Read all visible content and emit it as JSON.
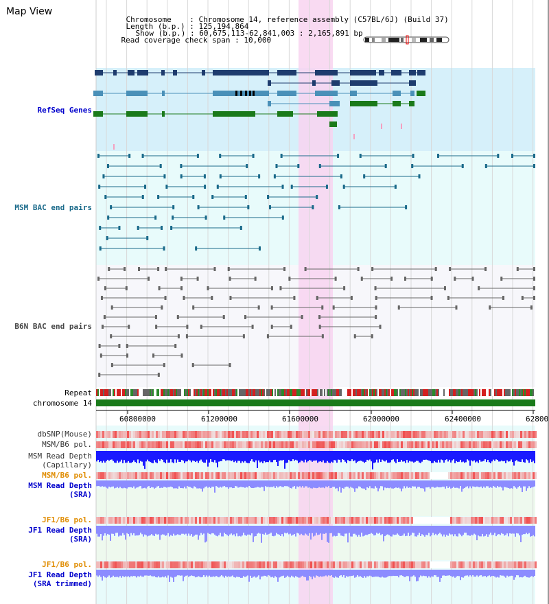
{
  "view_title": "Map View",
  "header": {
    "chromosome_label": "Chromosome",
    "chromosome_value": "Chromosome 14, reference assembly (C57BL/6J) (Build 37)",
    "length_label": "Length (b.p.)",
    "length_value": "125,194,864",
    "show_label": "Show (b.p.)",
    "show_value": "60,675,113-62,841,003 : 2,165,891 bp",
    "span_label": "Read coverage check span",
    "span_value": "10,000"
  },
  "colors": {
    "highlight": "#f8d4f0",
    "refseq_bg": "#d6f0fa",
    "bac_bg": "#e8fbfb",
    "b6n_bg": "#f7f7fb",
    "sra_bg": "#eef9ee",
    "gene_dark": "#1e3c6e",
    "gene_mid": "#4a90b8",
    "gene_green": "#1a7a1a",
    "bac_teal": "#1a6a8a",
    "b6n_gray": "#666666",
    "chrom_green": "#1a7a1a",
    "depth_blue": "#1a1aff",
    "depth_light": "#8c8cff"
  },
  "axis": {
    "ticks": [
      "60800000",
      "61200000",
      "61600000",
      "62000000",
      "62400000",
      "62800"
    ]
  },
  "tracks": {
    "refseq": {
      "label": "RefSeq Genes",
      "color": "#0000cc"
    },
    "msm_bac": {
      "label": "MSM BAC end pairs",
      "color": "#1a6a8a"
    },
    "b6n_bac": {
      "label": "B6N BAC end pairs",
      "color": "#444444"
    },
    "repeat": {
      "label": "Repeat",
      "color": "#000000"
    },
    "chromosome": {
      "label": "chromosome 14",
      "color": "#000000"
    },
    "dbsnp": {
      "label": "dbSNP(Mouse)",
      "color": "#333333"
    },
    "msm_b6_pol_1": {
      "label": "MSM/B6 pol.",
      "color": "#333333"
    },
    "msm_depth_cap": {
      "label": "MSM Read Depth\n(Capillary)",
      "color": "#333333"
    },
    "msm_b6_pol_2": {
      "label": "MSM/B6 pol.",
      "color": "#e08c00"
    },
    "msm_depth_sra": {
      "label": "MSM Read Depth\n(SRA)",
      "color": "#0000cc"
    },
    "jf1_b6_pol_1": {
      "label": "JF1/B6 pol.",
      "color": "#e08c00"
    },
    "jf1_depth_sra": {
      "label": "JF1 Read Depth\n(SRA)",
      "color": "#0000cc"
    },
    "jf1_b6_pol_2": {
      "label": "JF1/B6 pol.",
      "color": "#e08c00"
    },
    "jf1_depth_trim": {
      "label": "JF1 Read Depth\n(SRA trimmed)",
      "color": "#0000cc"
    }
  }
}
